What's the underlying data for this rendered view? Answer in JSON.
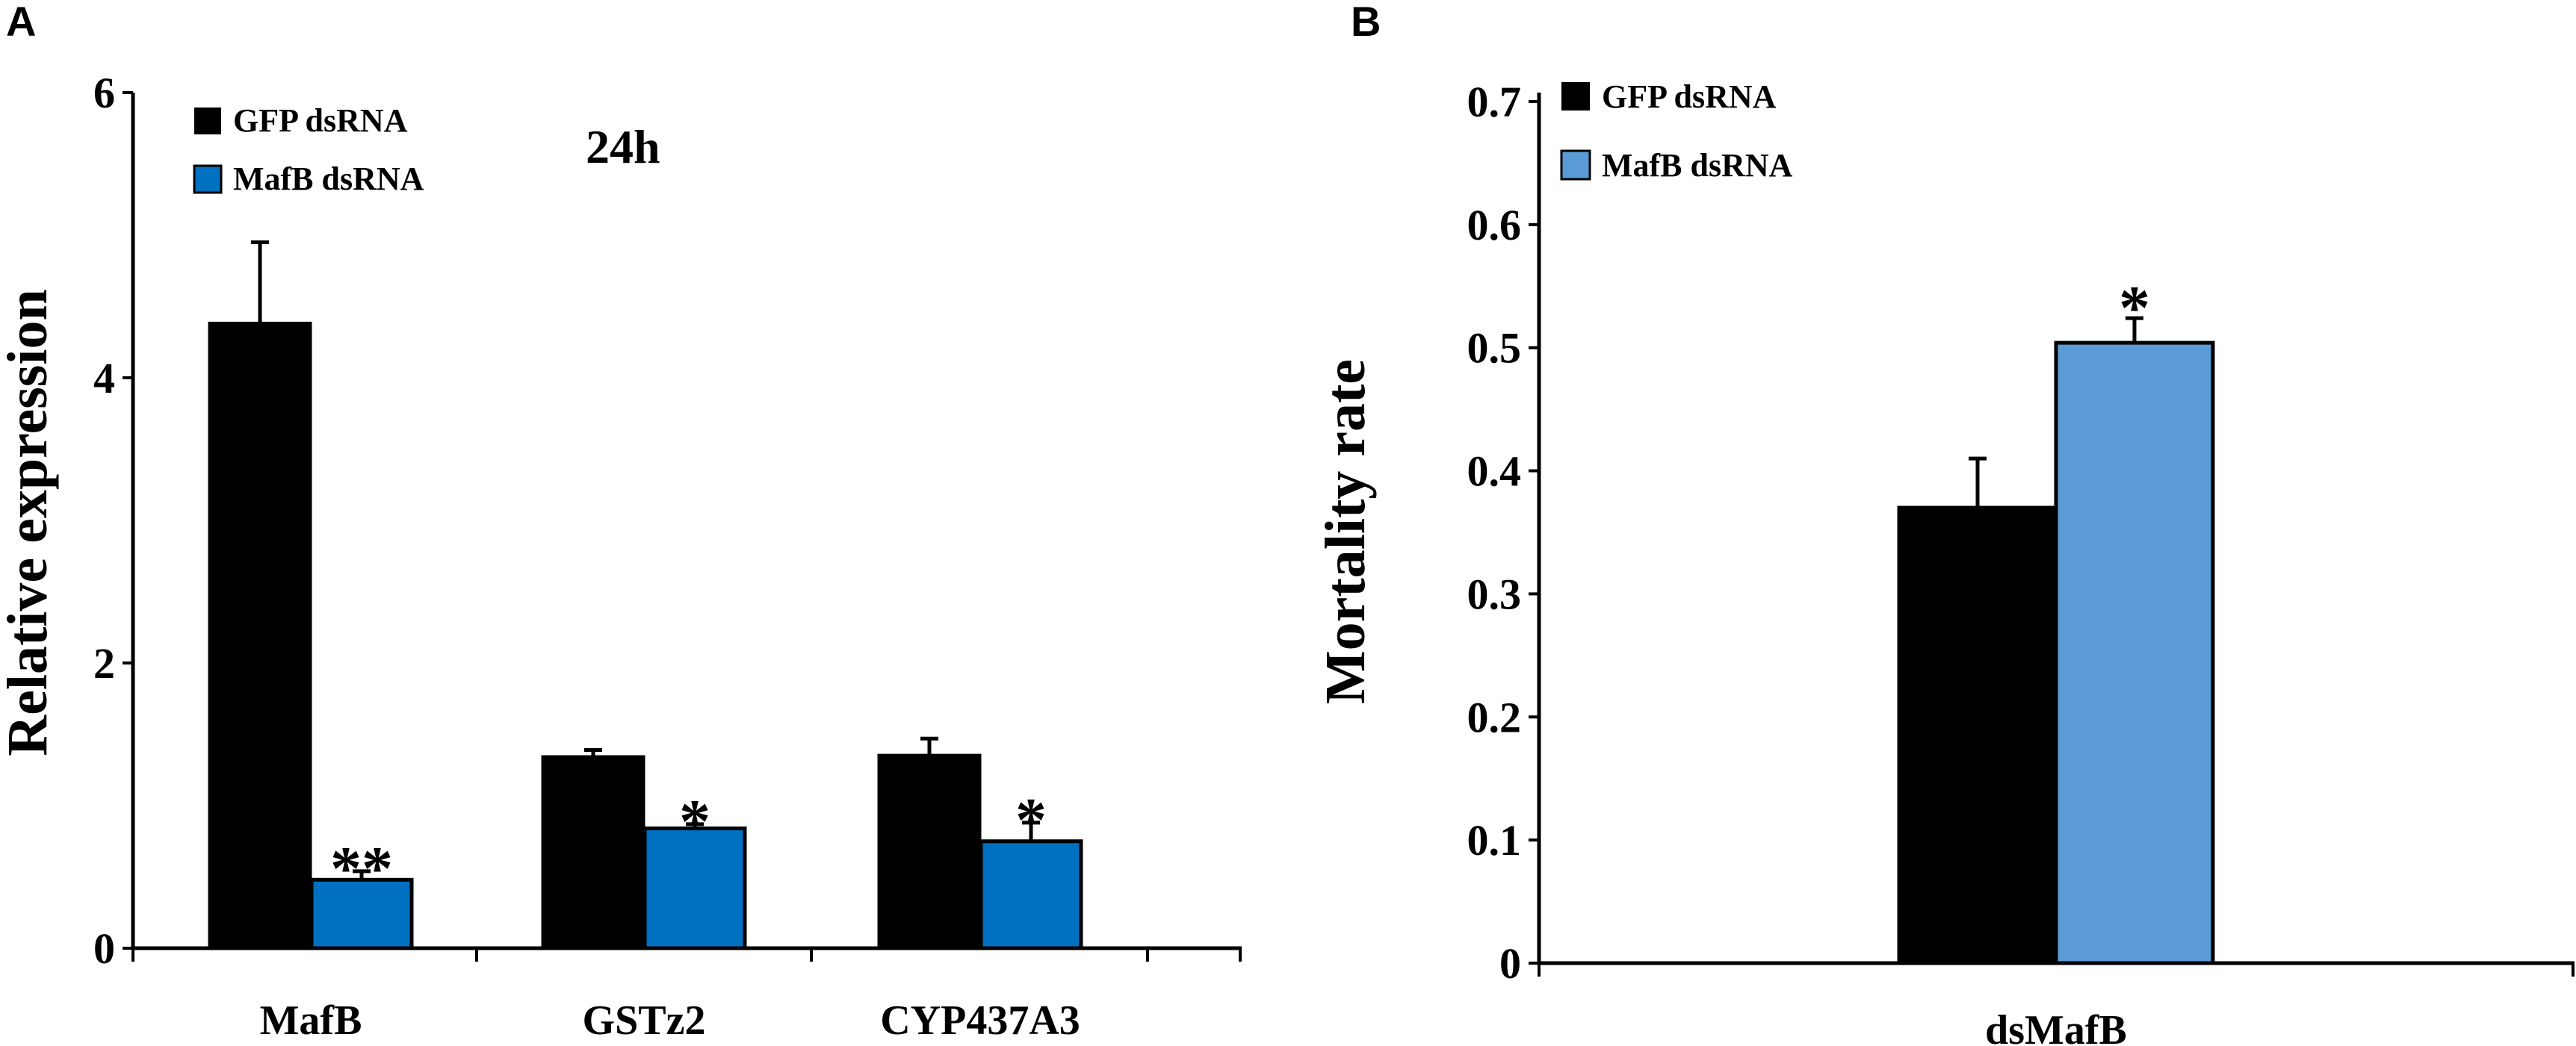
{
  "panels": {
    "a": {
      "letter": "A"
    },
    "b": {
      "letter": "B"
    }
  },
  "colors": {
    "gfp": "#000000",
    "mafb_a": "#0070C0",
    "mafb_b": "#5B9BD5"
  },
  "chart_data": [
    {
      "id": "A",
      "type": "bar",
      "title": "",
      "annotation": "24h",
      "xlabel": "",
      "ylabel": "Relative expression",
      "ylim": [
        0,
        6
      ],
      "yticks": [
        "0",
        "2",
        "4",
        "6"
      ],
      "categories": [
        "MafB",
        "GSTz2",
        "CYP437A3"
      ],
      "series": [
        {
          "name": "GFP dsRNA",
          "values": [
            4.38,
            1.34,
            1.35
          ],
          "errors": [
            0.57,
            0.05,
            0.12
          ]
        },
        {
          "name": "MafB dsRNA",
          "values": [
            0.48,
            0.84,
            0.75
          ],
          "errors": [
            0.06,
            0.03,
            0.13
          ]
        }
      ],
      "significance": [
        "**",
        "*",
        "*"
      ],
      "legend": "top-left",
      "grid": false
    },
    {
      "id": "B",
      "type": "bar",
      "title": "",
      "xlabel": "",
      "ylabel": "Mortality rate",
      "ylim": [
        0,
        0.7
      ],
      "yticks": [
        "0",
        "0.1",
        "0.2",
        "0.3",
        "0.4",
        "0.5",
        "0.6",
        "0.7"
      ],
      "categories": [
        "dsMafB"
      ],
      "series": [
        {
          "name": "GFP dsRNA",
          "values": [
            0.37
          ],
          "errors": [
            0.04
          ]
        },
        {
          "name": "MafB dsRNA",
          "values": [
            0.504
          ],
          "errors": [
            0.02
          ]
        }
      ],
      "significance": [
        "*"
      ],
      "legend": "top-left",
      "grid": false
    }
  ]
}
